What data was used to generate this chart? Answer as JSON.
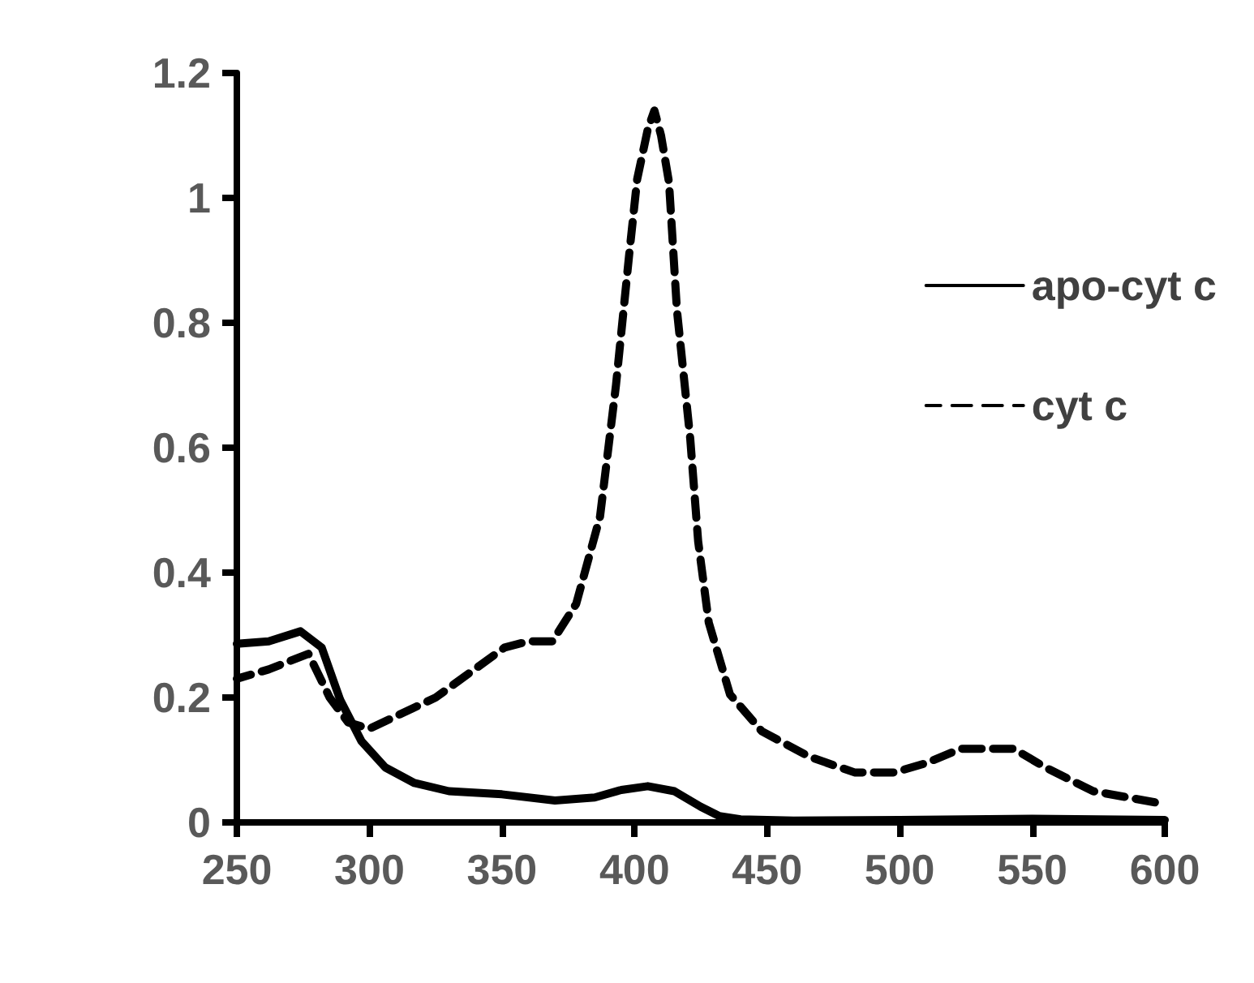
{
  "chart_data": {
    "type": "line",
    "xlim": [
      250,
      600
    ],
    "xticks": [
      250,
      300,
      350,
      400,
      450,
      500,
      550,
      600
    ],
    "ylim": [
      0,
      1.2
    ],
    "yticks": [
      0,
      0.2,
      0.4,
      0.6,
      0.8,
      1,
      1.2
    ],
    "grid": false,
    "legend": "right",
    "marker": "none",
    "series": [
      {
        "name": "apo-cyt c",
        "color": "#000000",
        "line_style": "solid",
        "x": [
          250,
          262,
          274,
          282,
          289,
          297,
          306,
          317,
          330,
          350,
          370,
          385,
          395,
          405,
          415,
          425,
          432,
          440,
          460,
          500,
          550,
          600
        ],
        "values": [
          0.286,
          0.29,
          0.306,
          0.28,
          0.196,
          0.13,
          0.088,
          0.063,
          0.05,
          0.045,
          0.035,
          0.04,
          0.052,
          0.058,
          0.05,
          0.025,
          0.01,
          0.005,
          0.003,
          0.004,
          0.006,
          0.004
        ]
      },
      {
        "name": "cyt c",
        "color": "#000000",
        "line_style": "dashed",
        "x": [
          250,
          262,
          277,
          285,
          292,
          300,
          325,
          351,
          360,
          369,
          378,
          387,
          393,
          398,
          401,
          405,
          407.5,
          410,
          413,
          416,
          421,
          424,
          428,
          436,
          448,
          466,
          483,
          498,
          510,
          523,
          543,
          555,
          573,
          599
        ],
        "values": [
          0.23,
          0.245,
          0.27,
          0.2,
          0.16,
          0.15,
          0.2,
          0.28,
          0.29,
          0.29,
          0.35,
          0.49,
          0.7,
          0.91,
          1.03,
          1.11,
          1.14,
          1.1,
          1.025,
          0.82,
          0.615,
          0.45,
          0.32,
          0.205,
          0.146,
          0.105,
          0.08,
          0.08,
          0.095,
          0.118,
          0.118,
          0.088,
          0.05,
          0.03
        ]
      }
    ]
  }
}
